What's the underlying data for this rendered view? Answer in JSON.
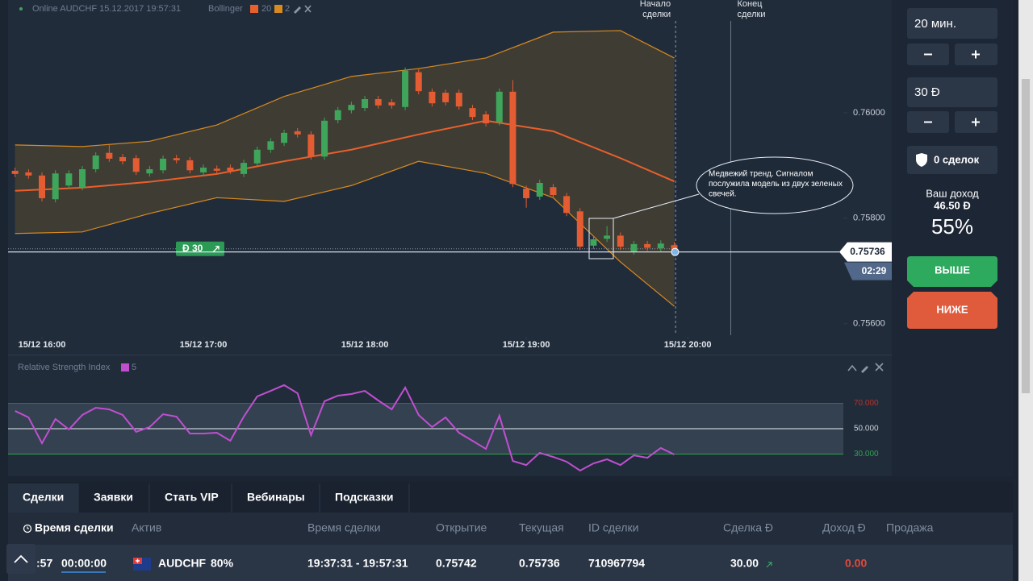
{
  "header": {
    "title": "Online AUDCHF 15.12.2017 19:57:31",
    "indicator": "Bollinger",
    "params": [
      20,
      2
    ]
  },
  "chart_data": [
    {
      "type": "candlestick",
      "up_color": "#3fa55b",
      "down_color": "#e45c32",
      "open": [
        0.7589,
        0.75887,
        0.75881,
        0.75836,
        0.75862,
        0.75859,
        0.75893,
        0.75924,
        0.75916,
        0.75914,
        0.75885,
        0.75891,
        0.75914,
        0.7591,
        0.75887,
        0.75894,
        0.75896,
        0.75884,
        0.75904,
        0.7593,
        0.75943,
        0.75965,
        0.75959,
        0.75917,
        0.75986,
        0.76005,
        0.76009,
        0.76026,
        0.7602,
        0.76011,
        0.76077,
        0.7604,
        0.76038,
        0.76038,
        0.76009,
        0.75997,
        0.75982,
        0.7604,
        0.75856,
        0.75841,
        0.75859,
        0.75842,
        0.75813,
        0.75748,
        0.75761,
        0.75767,
        0.75737,
        0.75751,
        0.75743,
        0.75749
      ],
      "high": [
        0.75896,
        0.75893,
        0.75887,
        0.75891,
        0.75891,
        0.75899,
        0.75925,
        0.7594,
        0.75922,
        0.7592,
        0.75899,
        0.75919,
        0.7592,
        0.75916,
        0.75902,
        0.759,
        0.75902,
        0.75911,
        0.75936,
        0.75952,
        0.75968,
        0.75971,
        0.75965,
        0.75991,
        0.76011,
        0.76021,
        0.76032,
        0.76032,
        0.76026,
        0.76086,
        0.76083,
        0.76046,
        0.76044,
        0.76044,
        0.76015,
        0.76003,
        0.76046,
        0.76062,
        0.75862,
        0.75873,
        0.75865,
        0.75848,
        0.75819,
        0.75766,
        0.75785,
        0.75773,
        0.75757,
        0.75757,
        0.75758,
        0.75755
      ],
      "low": [
        0.75878,
        0.75875,
        0.75832,
        0.7583,
        0.75856,
        0.75853,
        0.75887,
        0.75907,
        0.75902,
        0.75882,
        0.75879,
        0.75885,
        0.75904,
        0.75885,
        0.75881,
        0.75884,
        0.75884,
        0.75878,
        0.75898,
        0.75924,
        0.75937,
        0.75953,
        0.75911,
        0.75911,
        0.7598,
        0.75999,
        0.76003,
        0.76008,
        0.76008,
        0.76005,
        0.76035,
        0.76012,
        0.76014,
        0.76006,
        0.75986,
        0.75974,
        0.75976,
        0.75859,
        0.7582,
        0.75835,
        0.75838,
        0.75804,
        0.7574,
        0.75742,
        0.75755,
        0.7574,
        0.75731,
        0.75738,
        0.75737,
        0.75734
      ],
      "close": [
        0.75884,
        0.75881,
        0.75838,
        0.75885,
        0.75885,
        0.75893,
        0.75919,
        0.75913,
        0.75908,
        0.75888,
        0.75893,
        0.75913,
        0.7591,
        0.75891,
        0.75896,
        0.7589,
        0.7589,
        0.75905,
        0.7593,
        0.75946,
        0.75962,
        0.75959,
        0.75917,
        0.75985,
        0.76005,
        0.76015,
        0.76026,
        0.76014,
        0.76014,
        0.7608,
        0.76041,
        0.76018,
        0.7602,
        0.76012,
        0.75992,
        0.7598,
        0.7604,
        0.75865,
        0.75838,
        0.75867,
        0.75844,
        0.7581,
        0.75746,
        0.7576,
        0.75767,
        0.75746,
        0.75751,
        0.75744,
        0.75752,
        0.7574
      ],
      "bands": {
        "x": [
          0,
          5,
          10,
          15,
          20,
          25,
          30,
          35,
          40,
          45,
          49
        ],
        "upper": [
          0.75939,
          0.75936,
          0.75946,
          0.75977,
          0.76031,
          0.76069,
          0.76084,
          0.76104,
          0.76153,
          0.76156,
          0.76104
        ],
        "middle": [
          0.75852,
          0.75858,
          0.75869,
          0.75884,
          0.75908,
          0.7593,
          0.75959,
          0.75985,
          0.75965,
          0.75914,
          0.7587
        ],
        "lower": [
          0.75771,
          0.75774,
          0.75809,
          0.75839,
          0.75832,
          0.75862,
          0.75908,
          0.75885,
          0.75839,
          0.75717,
          0.75633
        ],
        "upper_color": "#d88a1f",
        "middle_color": "#e8602c",
        "fill": "#5a4a30"
      },
      "xlim": [
        -0.52,
        61.27
      ],
      "xticks": [
        {
          "value": 2,
          "label": "15/12 16:00"
        },
        {
          "value": 14,
          "label": "15/12 17:00"
        },
        {
          "value": 26,
          "label": "15/12 18:00"
        },
        {
          "value": 38,
          "label": "15/12 19:00"
        },
        {
          "value": 50,
          "label": "15/12 20:00"
        }
      ],
      "ylim": [
        0.75575,
        0.76214
      ],
      "yticks": [
        {
          "value": 0.76,
          "label": "0.76000"
        },
        {
          "value": 0.758,
          "label": "0.75800"
        },
        {
          "value": 0.756,
          "label": "0.75600"
        }
      ],
      "price": 0.75736,
      "timer": "02:29",
      "trade": {
        "label": "Ð 30",
        "price": 0.75742
      },
      "vlines": [
        {
          "x": 49.1,
          "label": [
            "Начало",
            "сделки"
          ]
        },
        {
          "x": 53.2,
          "label": [
            "Конец",
            "сделки"
          ]
        }
      ],
      "annotation": [
        "Медвежий тренд. Сигналом",
        "послужила модель из двух зеленых",
        "свечей."
      ]
    },
    {
      "type": "line",
      "title": "Relative Strength Index",
      "period": 5,
      "color": "#c04fd0",
      "values": [
        64.0,
        58.9,
        38.6,
        57.6,
        49.4,
        60.8,
        66.5,
        65.2,
        60.8,
        47.5,
        51.3,
        61.4,
        59.5,
        46.2,
        46.2,
        46.8,
        40.5,
        59.5,
        75.4,
        79.8,
        84.3,
        77.9,
        44.9,
        71.6,
        76.0,
        77.3,
        79.8,
        72.2,
        65.2,
        82.4,
        60.8,
        51.3,
        58.9,
        46.8,
        40.5,
        34.1,
        60.2,
        24.6,
        21.4,
        31.0,
        27.8,
        24.0,
        17.0,
        22.7,
        25.9,
        21.4,
        29.0,
        27.1,
        34.8,
        29.7
      ],
      "xlim": [
        -0.52,
        61.27
      ],
      "ylim": [
        13.2,
        92.5
      ],
      "yticks": [
        {
          "value": 70,
          "label": "70.000"
        },
        {
          "value": 50,
          "label": "50.000"
        },
        {
          "value": 30,
          "label": "30.000"
        }
      ],
      "level_colors": [
        "#b8322a",
        "#e8eef5",
        "#2fa14e"
      ]
    }
  ],
  "side_panel": {
    "duration": "20 мин.",
    "amount": "30 Ð",
    "deals": "0 сделок",
    "income_label": "Ваш доход",
    "income": "46.50 Ð",
    "payout": "55%",
    "up": "ВЫШЕ",
    "down": "НИЖЕ"
  },
  "tabs": [
    "Сделки",
    "Заявки",
    "Стать VIP",
    "Вебинары",
    "Подсказки"
  ],
  "table": {
    "columns": [
      "Время сделки",
      "Актив",
      "Время сделки",
      "Открытие",
      "Текущая",
      "ID сделки",
      "Сделка Ð",
      "Доход Ð",
      "Продажа"
    ],
    "rows": [
      [
        ":57",
        "00:00:00",
        "AUDCHF",
        "80%",
        "19:37:31 - 19:57:31",
        "0.75742",
        "0.75736",
        "710967794",
        "30.00",
        "0.00"
      ]
    ]
  }
}
